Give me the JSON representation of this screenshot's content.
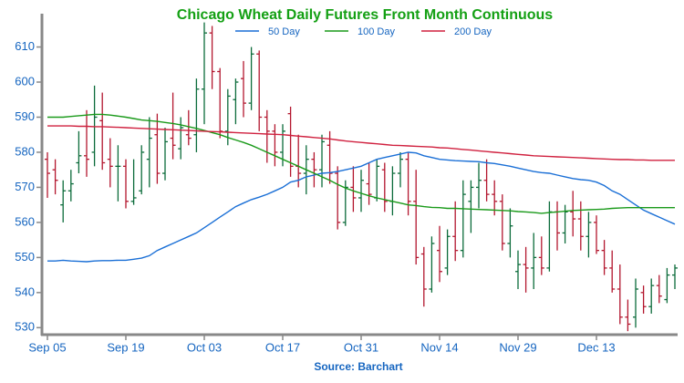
{
  "chart_data": {
    "type": "ohlc",
    "title": "Chicago Wheat Daily Futures Front Month Continuous",
    "source": "Source: Barchart",
    "categories": [
      "Sep 05",
      null,
      null,
      null,
      null,
      null,
      null,
      null,
      null,
      null,
      "Sep 19",
      null,
      null,
      null,
      null,
      null,
      null,
      null,
      null,
      null,
      "Oct 03",
      null,
      null,
      null,
      null,
      null,
      null,
      null,
      null,
      null,
      "Oct 17",
      null,
      null,
      null,
      null,
      null,
      null,
      null,
      null,
      null,
      "Oct 31",
      null,
      null,
      null,
      null,
      null,
      null,
      null,
      null,
      null,
      "Nov 14",
      null,
      null,
      null,
      null,
      null,
      null,
      null,
      null,
      null,
      "Nov 29",
      null,
      null,
      null,
      null,
      null,
      null,
      null,
      null,
      null,
      "Dec 13",
      null,
      null,
      null,
      null,
      null,
      null,
      null,
      null,
      null,
      null
    ],
    "open": [
      578,
      575,
      565,
      569,
      577,
      579,
      580,
      589,
      578,
      576,
      576,
      566,
      569,
      578,
      585,
      574,
      584,
      581,
      585,
      585,
      598,
      614,
      603,
      586,
      595,
      601,
      594,
      608,
      590,
      586,
      580,
      591,
      576,
      574,
      578,
      575,
      582,
      574,
      560,
      570,
      567,
      571,
      567,
      575,
      566,
      574,
      578,
      566,
      551,
      541,
      552,
      547,
      556,
      552,
      566,
      570,
      572,
      568,
      566,
      554,
      546,
      548,
      547,
      550,
      547,
      563,
      557,
      563,
      561,
      556,
      560,
      552,
      547,
      541,
      533,
      533,
      540,
      536,
      542,
      538,
      545
    ],
    "high": [
      580,
      578,
      572,
      575,
      586,
      592,
      599,
      597,
      584,
      582,
      578,
      578,
      582,
      590,
      591,
      587,
      597,
      590,
      592,
      601,
      617,
      616,
      604,
      598,
      601,
      606,
      610,
      609,
      592,
      588,
      588,
      593,
      585,
      582,
      580,
      585,
      586,
      576,
      572,
      576,
      575,
      577,
      578,
      577,
      576,
      580,
      580,
      575,
      553,
      556,
      559,
      558,
      566,
      572,
      572,
      577,
      578,
      572,
      568,
      564,
      552,
      553,
      557,
      556,
      566,
      566,
      565,
      569,
      566,
      563,
      562,
      555,
      552,
      548,
      538,
      544,
      542,
      544,
      545,
      547,
      548
    ],
    "low": [
      567,
      568,
      560,
      566,
      574,
      573,
      576,
      575,
      570,
      566,
      564,
      565,
      568,
      570,
      571,
      572,
      578,
      578,
      582,
      580,
      588,
      598,
      584,
      582,
      588,
      590,
      592,
      586,
      577,
      576,
      576,
      573,
      570,
      568,
      570,
      570,
      571,
      558,
      559,
      563,
      563,
      565,
      566,
      563,
      562,
      570,
      562,
      548,
      536,
      540,
      543,
      545,
      549,
      550,
      557,
      564,
      566,
      562,
      552,
      550,
      541,
      540,
      541,
      545,
      546,
      552,
      554,
      556,
      552,
      550,
      551,
      545,
      540,
      531,
      529,
      530,
      534,
      534,
      537,
      537,
      541
    ],
    "close": [
      574,
      572,
      569,
      571,
      579,
      578,
      590,
      577,
      576,
      576,
      566,
      567,
      580,
      584,
      574,
      583,
      582,
      587,
      584,
      598,
      614,
      603,
      586,
      596,
      600,
      594,
      608,
      590,
      586,
      580,
      586,
      576,
      574,
      578,
      575,
      583,
      574,
      560,
      570,
      567,
      572,
      568,
      576,
      566,
      574,
      578,
      566,
      550,
      541,
      554,
      546,
      556,
      552,
      568,
      570,
      572,
      568,
      566,
      554,
      559,
      548,
      547,
      550,
      547,
      563,
      557,
      563,
      561,
      556,
      560,
      552,
      547,
      541,
      533,
      531,
      541,
      536,
      542,
      539,
      545,
      547
    ],
    "up_color": "#0b6b3a",
    "down_color": "#b3162e",
    "series": [
      {
        "name": "50 Day",
        "color": "#1a6fd6",
        "values": [
          549,
          549,
          549.2,
          549,
          548.9,
          548.8,
          549,
          549.1,
          549.1,
          549.2,
          549.2,
          549.5,
          549.8,
          550.5,
          552,
          553,
          554,
          555,
          556,
          557,
          558.5,
          560,
          561.5,
          563,
          564.5,
          565.5,
          566.5,
          567.2,
          568,
          569,
          570,
          571.5,
          572,
          573,
          573.5,
          574,
          574.2,
          574.5,
          575,
          575.5,
          576,
          577,
          578,
          578.5,
          579,
          579.5,
          580,
          579.8,
          579,
          578.5,
          578,
          577.8,
          577.6,
          577.5,
          577.4,
          577.3,
          577,
          576.8,
          576.4,
          576,
          575.5,
          575,
          574.5,
          574.2,
          574,
          573.5,
          573,
          572.5,
          572.2,
          572,
          571.5,
          570.5,
          569,
          568,
          566.5,
          565,
          563.5,
          562.5,
          561.5,
          560.5,
          559.5
        ]
      },
      {
        "name": "100 Day",
        "color": "#1a9a1a",
        "values": [
          590,
          590,
          590,
          590.2,
          590.4,
          590.6,
          590.8,
          590.8,
          590.6,
          590.3,
          590,
          589.6,
          589.2,
          589,
          588.8,
          588.5,
          588.2,
          587.8,
          587.3,
          586.8,
          586.2,
          585.6,
          585,
          584.2,
          583.5,
          582.8,
          582,
          581,
          580,
          579,
          578,
          577,
          576,
          575,
          574,
          573,
          572,
          570.8,
          569.8,
          569,
          568.3,
          567.6,
          567,
          566.5,
          566,
          565.5,
          565,
          564.8,
          564.5,
          564.3,
          564.2,
          564,
          564,
          563.9,
          563.8,
          563.7,
          563.6,
          563.5,
          563.4,
          563.3,
          563.1,
          563,
          562.8,
          562.6,
          562.8,
          563,
          563.2,
          563.4,
          563.5,
          563.6,
          563.7,
          563.8,
          564,
          564.1,
          564.2,
          564.2,
          564.2,
          564.2,
          564.2,
          564.2,
          564.2
        ]
      },
      {
        "name": "200 Day",
        "color": "#d0213f",
        "values": [
          587.5,
          587.5,
          587.5,
          587.5,
          587.4,
          587.4,
          587.3,
          587.3,
          587.2,
          587.1,
          587,
          586.9,
          586.8,
          586.7,
          586.6,
          586.5,
          586.4,
          586.3,
          586.2,
          586.1,
          586,
          585.9,
          585.8,
          585.7,
          585.6,
          585.5,
          585.4,
          585.3,
          585.2,
          585.1,
          585,
          584.8,
          584.6,
          584.4,
          584.2,
          584,
          583.8,
          583.5,
          583.2,
          583,
          582.8,
          582.6,
          582.4,
          582.2,
          582,
          581.9,
          581.8,
          581.7,
          581.6,
          581.5,
          581.3,
          581.2,
          581,
          580.8,
          580.6,
          580.4,
          580.2,
          580,
          579.8,
          579.6,
          579.4,
          579.2,
          579,
          578.9,
          578.8,
          578.7,
          578.6,
          578.5,
          578.4,
          578.3,
          578.2,
          578.1,
          578,
          577.9,
          577.9,
          577.8,
          577.8,
          577.7,
          577.7,
          577.7,
          577.7
        ]
      }
    ],
    "ylim": [
      528,
      619.5
    ],
    "yticks": [
      530,
      540,
      550,
      560,
      570,
      580,
      590,
      600,
      610
    ],
    "legend": "top"
  }
}
